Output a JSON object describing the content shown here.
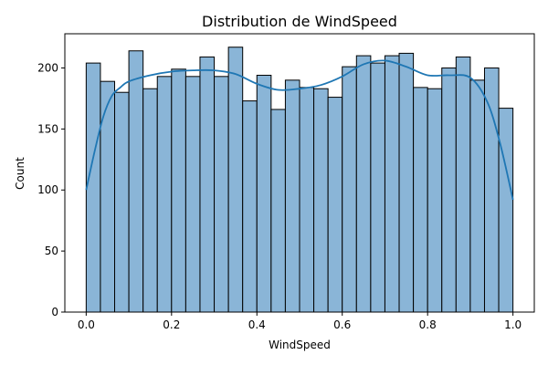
{
  "chart_data": {
    "type": "bar",
    "title": "Distribution de WindSpeed",
    "xlabel": "WindSpeed",
    "ylabel": "Count",
    "xlim": [
      -0.05,
      1.05
    ],
    "ylim": [
      0,
      228
    ],
    "x_ticks": [
      0.0,
      0.2,
      0.4,
      0.6,
      0.8,
      1.0
    ],
    "x_tick_labels": [
      "0.0",
      "0.2",
      "0.4",
      "0.6",
      "0.8",
      "1.0"
    ],
    "y_ticks": [
      0,
      50,
      100,
      150,
      200
    ],
    "y_tick_labels": [
      "0",
      "50",
      "100",
      "150",
      "200"
    ],
    "bin_start": 0.0,
    "bin_end": 1.0,
    "bins": 30,
    "values": [
      204,
      189,
      180,
      214,
      183,
      193,
      199,
      193,
      209,
      193,
      217,
      173,
      194,
      166,
      190,
      184,
      183,
      176,
      201,
      210,
      204,
      210,
      212,
      184,
      183,
      200,
      209,
      190,
      200,
      167
    ],
    "kde": {
      "x": [
        0.0,
        0.02,
        0.04,
        0.06,
        0.08,
        0.1,
        0.15,
        0.2,
        0.25,
        0.3,
        0.35,
        0.4,
        0.45,
        0.5,
        0.55,
        0.6,
        0.65,
        0.7,
        0.75,
        0.8,
        0.85,
        0.9,
        0.94,
        0.97,
        1.0
      ],
      "y": [
        100,
        132,
        160,
        177,
        184,
        189,
        194,
        197,
        198,
        198,
        195,
        187,
        182,
        183,
        186,
        193,
        203,
        206,
        201,
        194,
        194,
        192,
        172,
        138,
        92
      ]
    },
    "colors": {
      "bar_fill": "#8ab5d7",
      "bar_edge": "#000000",
      "kde_line": "#1f77b4"
    },
    "grid": false,
    "legend": "none"
  }
}
